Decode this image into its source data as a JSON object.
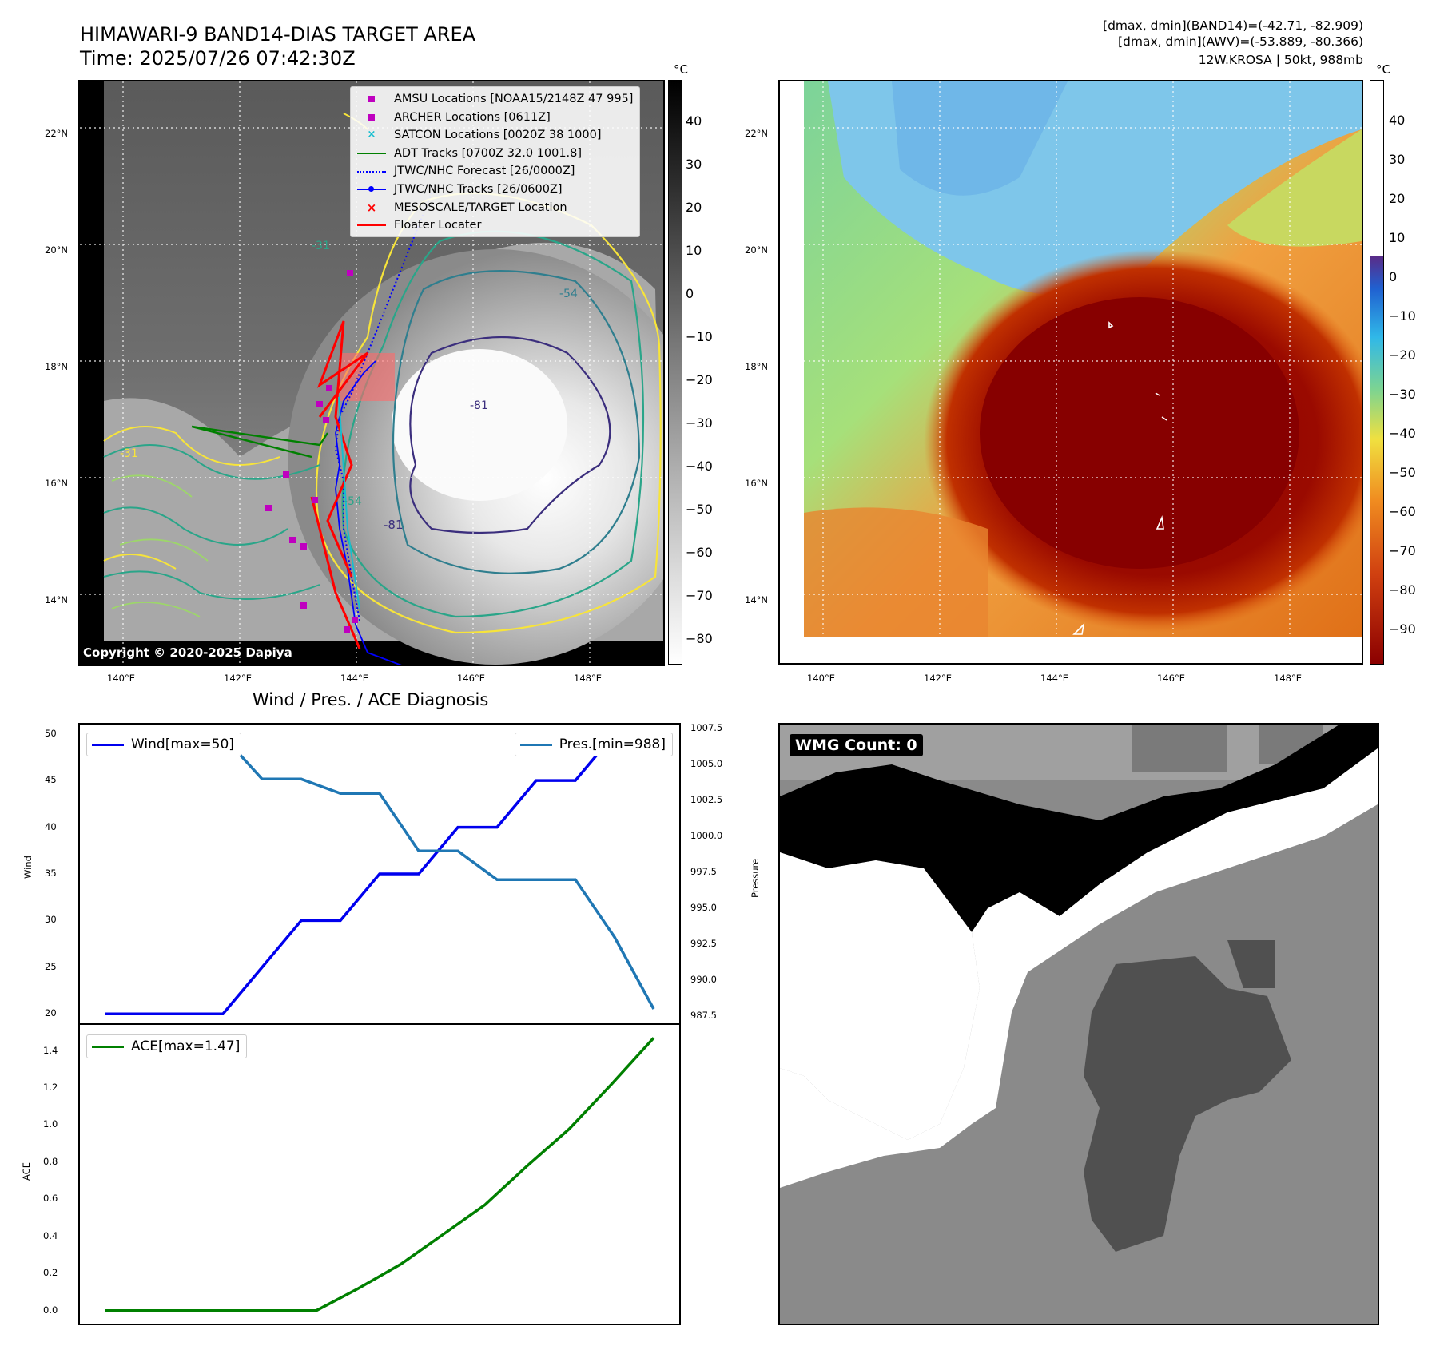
{
  "header": {
    "title_line1": "HIMAWARI-9 BAND14-DIAS TARGET AREA",
    "title_line2": "Time: 2025/07/26 07:42:30Z",
    "meta_line1": "[dmax, dmin](BAND14)=(-42.71, -82.909)",
    "meta_line2": "[dmax, dmin](AWV)=(-53.889, -80.366)",
    "meta_line3": "12W.KROSA | 50kt, 988mb"
  },
  "map_left": {
    "copyright": "Copyright © 2020-2025 Dapiya",
    "lat_labels": [
      "22°N",
      "20°N",
      "18°N",
      "16°N",
      "14°N"
    ],
    "lon_labels": [
      "140°E",
      "142°E",
      "144°E",
      "146°E",
      "148°E"
    ],
    "colorbar_unit": "°C",
    "colorbar_ticks": [
      "40",
      "30",
      "20",
      "10",
      "0",
      "−10",
      "−20",
      "−30",
      "−40",
      "−50",
      "−60",
      "−70",
      "−80"
    ],
    "contour_labels": [
      "-31",
      "-54",
      "-81",
      "-54",
      "-31",
      "-81"
    ],
    "legend": [
      {
        "label": "AMSU Locations [NOAA15/2148Z 47 995]",
        "color": "#bf00bf",
        "marker": "square"
      },
      {
        "label": "ARCHER Locations [0611Z]",
        "color": "#bf00bf",
        "marker": "square"
      },
      {
        "label": "SATCON Locations [0020Z 38 1000]",
        "color": "#17becf",
        "marker": "x"
      },
      {
        "label": "ADT Tracks [0700Z 32.0 1001.8]",
        "color": "#008000",
        "marker": "line"
      },
      {
        "label": "JTWC/NHC Forecast [26/0000Z]",
        "color": "#0000ff",
        "marker": "dotted"
      },
      {
        "label": "JTWC/NHC Tracks [26/0600Z]",
        "color": "#0000ff",
        "marker": "line-dot"
      },
      {
        "label": "MESOSCALE/TARGET Location",
        "color": "#ff0000",
        "marker": "x"
      },
      {
        "label": "Floater Locater",
        "color": "#ff0000",
        "marker": "line"
      }
    ]
  },
  "map_right": {
    "lat_labels": [
      "22°N",
      "20°N",
      "18°N",
      "16°N",
      "14°N"
    ],
    "lon_labels": [
      "140°E",
      "142°E",
      "144°E",
      "146°E",
      "148°E"
    ],
    "colorbar_unit": "°C",
    "colorbar_ticks": [
      "40",
      "30",
      "20",
      "10",
      "0",
      "−10",
      "−20",
      "−30",
      "−40",
      "−50",
      "−60",
      "−70",
      "−80",
      "−90"
    ]
  },
  "diagnosis": {
    "title": "Wind / Pres. / ACE Diagnosis",
    "wind_legend": "Wind[max=50]",
    "pres_legend": "Pres.[min=988]",
    "ace_legend": "ACE[max=1.47]",
    "wind_axis_label": "Wind",
    "pres_axis_label": "Pressure",
    "ace_axis_label": "ACE"
  },
  "wmg": {
    "label": "WMG Count: 0"
  },
  "colors": {
    "wind": "#0000ee",
    "pressure": "#1f77b4",
    "ace": "#008000"
  },
  "chart_data": [
    {
      "type": "line",
      "title": "Wind / Pres. / ACE Diagnosis",
      "ylabel": "Wind",
      "ylim": [
        19,
        51
      ],
      "yticks": [
        20,
        25,
        30,
        35,
        40,
        45,
        50
      ],
      "series": [
        {
          "name": "Wind[max=50]",
          "axis": "left",
          "values": [
            20,
            20,
            20,
            20,
            25,
            30,
            30,
            35,
            35,
            40,
            40,
            45,
            45,
            50,
            50
          ]
        },
        {
          "name": "Pres.[min=988]",
          "axis": "right",
          "values": [
            1007,
            1007,
            1007,
            1007,
            1004,
            1004,
            1003,
            1003,
            999,
            999,
            997,
            997,
            997,
            993,
            988
          ]
        }
      ],
      "y2label": "Pressure",
      "y2lim": [
        987.0,
        1007.8
      ],
      "y2ticks": [
        987.5,
        990.0,
        992.5,
        995.0,
        997.5,
        1000.0,
        1002.5,
        1005.0,
        1007.5
      ]
    },
    {
      "type": "line",
      "ylabel": "ACE",
      "ylim": [
        -0.07,
        1.54
      ],
      "yticks": [
        0.0,
        0.2,
        0.4,
        0.6,
        0.8,
        1.0,
        1.2,
        1.4
      ],
      "series": [
        {
          "name": "ACE[max=1.47]",
          "values": [
            0,
            0,
            0,
            0,
            0,
            0,
            0.12,
            0.25,
            0.41,
            0.57,
            0.78,
            0.98,
            1.22,
            1.47
          ]
        }
      ]
    }
  ]
}
